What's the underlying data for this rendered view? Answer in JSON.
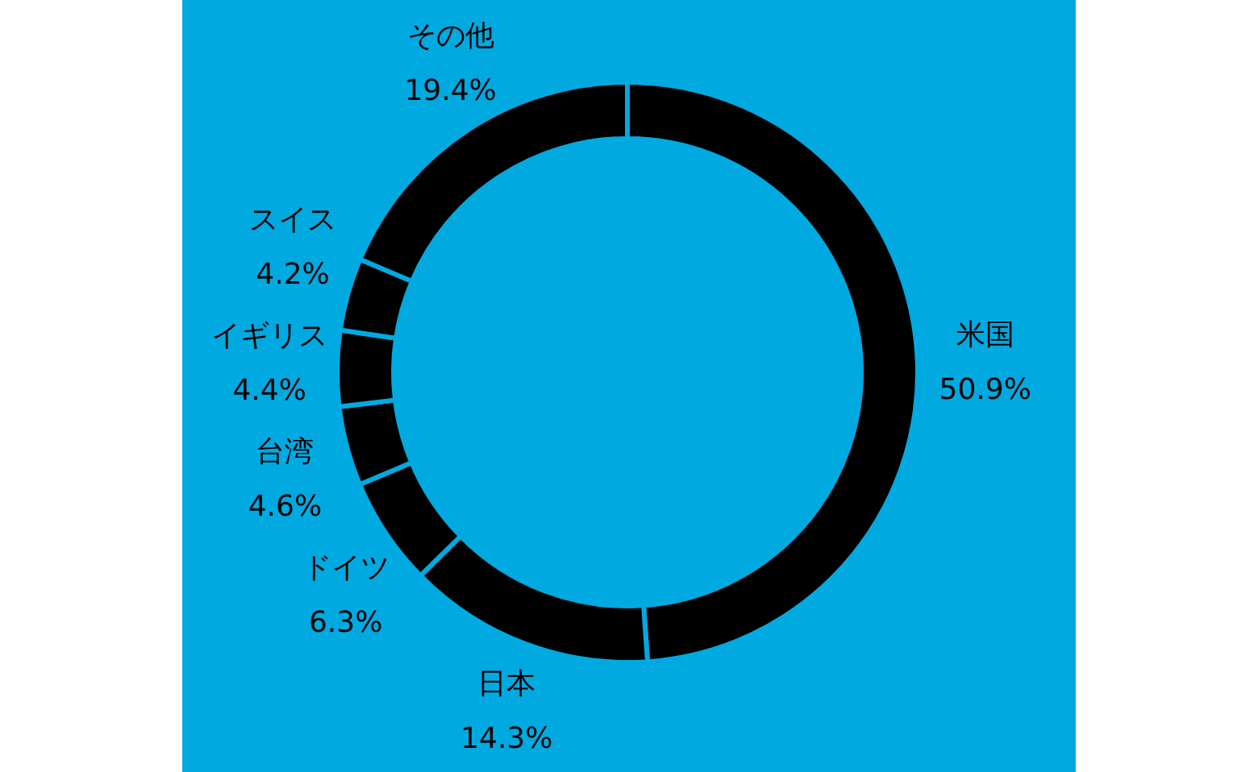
{
  "chart_data": {
    "type": "donut",
    "categories": [
      "米国",
      "日本",
      "ドイツ",
      "台湾",
      "イギリス",
      "スイス",
      "その他"
    ],
    "values": [
      50.9,
      14.3,
      6.3,
      4.6,
      4.4,
      4.2,
      19.4
    ],
    "value_labels": [
      "50.9%",
      "14.3%",
      "6.3%",
      "4.6%",
      "4.4%",
      "4.2%",
      "19.4%"
    ],
    "colors": [
      "#000000",
      "#000000",
      "#000000",
      "#000000",
      "#000000",
      "#000000",
      "#000000"
    ]
  }
}
